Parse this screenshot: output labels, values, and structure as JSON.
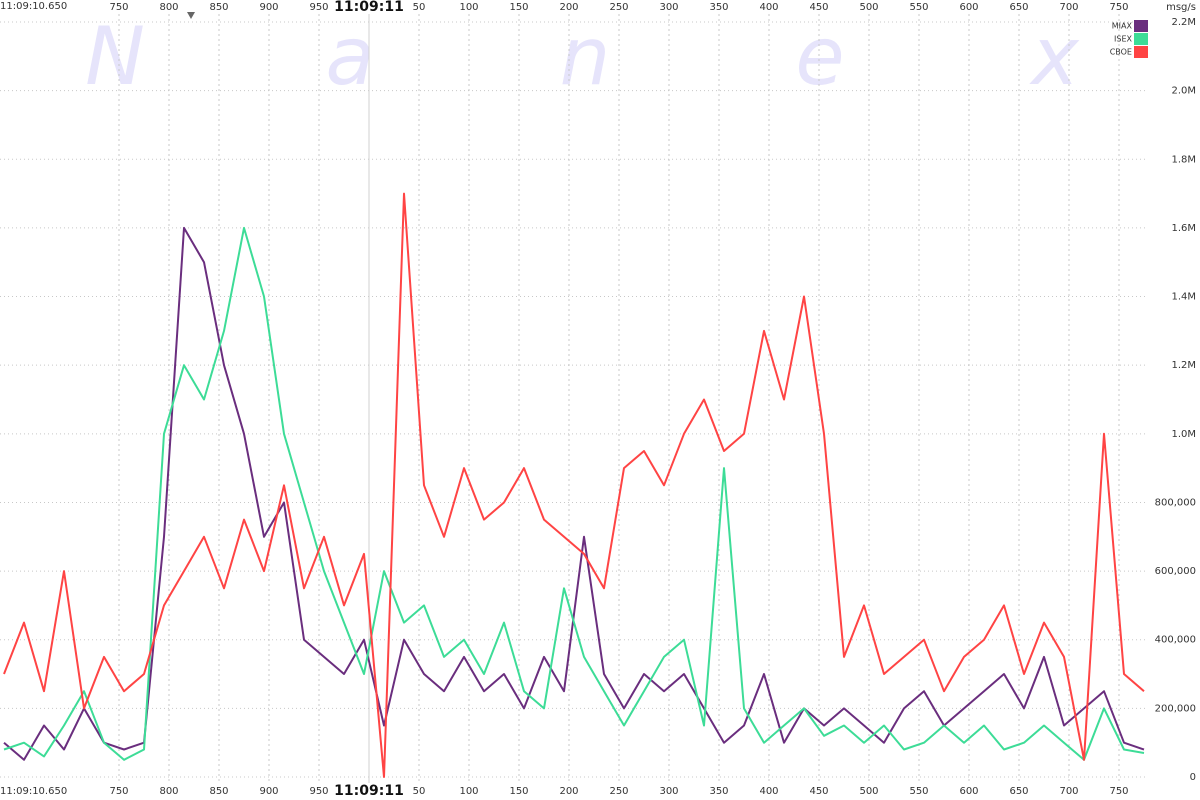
{
  "chart_data": {
    "type": "line",
    "watermark": [
      "N",
      "a",
      "n",
      "e",
      "x"
    ],
    "start_time_label": "11:09:10.650",
    "y_axis_label": "msg/s",
    "x": [
      635,
      655,
      675,
      695,
      715,
      735,
      755,
      775,
      795,
      815,
      835,
      855,
      875,
      895,
      915,
      935,
      955,
      975,
      995,
      1015,
      1035,
      1055,
      1075,
      1095,
      1115,
      1135,
      1155,
      1175,
      1195,
      1215,
      1235,
      1255,
      1275,
      1295,
      1315,
      1335,
      1355,
      1375,
      1395,
      1415,
      1435,
      1455,
      1475,
      1495,
      1515,
      1535,
      1555,
      1575,
      1595,
      1615,
      1635,
      1655,
      1675,
      1695,
      1715,
      1735,
      1755,
      1775
    ],
    "series": [
      {
        "name": "MIAX",
        "color": "#6a2e7e",
        "values": [
          100000,
          50000,
          150000,
          80000,
          200000,
          100000,
          80000,
          100000,
          700000,
          1600000,
          1500000,
          1200000,
          1000000,
          700000,
          800000,
          400000,
          350000,
          300000,
          400000,
          150000,
          400000,
          300000,
          250000,
          350000,
          250000,
          300000,
          200000,
          350000,
          250000,
          700000,
          300000,
          200000,
          300000,
          250000,
          300000,
          200000,
          100000,
          150000,
          300000,
          100000,
          200000,
          150000,
          200000,
          150000,
          100000,
          200000,
          250000,
          150000,
          200000,
          250000,
          300000,
          200000,
          350000,
          150000,
          200000,
          250000,
          100000,
          80000
        ]
      },
      {
        "name": "ISEX",
        "color": "#3ddc97",
        "values": [
          80000,
          100000,
          60000,
          150000,
          250000,
          100000,
          50000,
          80000,
          1000000,
          1200000,
          1100000,
          1300000,
          1600000,
          1400000,
          1000000,
          800000,
          600000,
          450000,
          300000,
          600000,
          450000,
          500000,
          350000,
          400000,
          300000,
          450000,
          250000,
          200000,
          550000,
          350000,
          250000,
          150000,
          250000,
          350000,
          400000,
          150000,
          900000,
          200000,
          100000,
          150000,
          200000,
          120000,
          150000,
          100000,
          150000,
          80000,
          100000,
          150000,
          100000,
          150000,
          80000,
          100000,
          150000,
          100000,
          50000,
          200000,
          80000,
          70000
        ]
      },
      {
        "name": "CBOE",
        "color": "#ff4444",
        "values": [
          300000,
          450000,
          250000,
          600000,
          200000,
          350000,
          250000,
          300000,
          500000,
          600000,
          700000,
          550000,
          750000,
          600000,
          850000,
          550000,
          700000,
          500000,
          650000,
          0,
          1700000,
          850000,
          700000,
          900000,
          750000,
          800000,
          900000,
          750000,
          700000,
          650000,
          550000,
          900000,
          950000,
          850000,
          1000000,
          1100000,
          950000,
          1000000,
          1300000,
          1100000,
          1400000,
          1000000,
          350000,
          500000,
          300000,
          350000,
          400000,
          250000,
          350000,
          400000,
          500000,
          300000,
          450000,
          350000,
          50000,
          1000000,
          300000,
          250000
        ]
      }
    ],
    "xlim": [
      631,
      1779
    ],
    "xticks": [
      750,
      800,
      850,
      900,
      950,
      {
        "value": 1000,
        "label": "11:09:11"
      },
      {
        "value": 1050,
        "label": "50"
      },
      {
        "value": 1100,
        "label": "100"
      },
      {
        "value": 1150,
        "label": "150"
      },
      {
        "value": 1200,
        "label": "200"
      },
      {
        "value": 1250,
        "label": "250"
      },
      {
        "value": 1300,
        "label": "300"
      },
      {
        "value": 1350,
        "label": "350"
      },
      {
        "value": 1400,
        "label": "400"
      },
      {
        "value": 1450,
        "label": "450"
      },
      {
        "value": 1500,
        "label": "500"
      },
      {
        "value": 1550,
        "label": "550"
      },
      {
        "value": 1600,
        "label": "600"
      },
      {
        "value": 1650,
        "label": "650"
      },
      {
        "value": 1700,
        "label": "700"
      },
      {
        "value": 1750,
        "label": "750"
      }
    ],
    "ylim": [
      0,
      2200000
    ],
    "yticks": [
      0,
      {
        "value": 200000,
        "label": "200,000"
      },
      {
        "value": 400000,
        "label": "400,000"
      },
      {
        "value": 600000,
        "label": "600,000"
      },
      {
        "value": 800000,
        "label": "800,000"
      },
      {
        "value": 1000000,
        "label": "1.0M"
      },
      {
        "value": 1200000,
        "label": "1.2M"
      },
      {
        "value": 1400000,
        "label": "1.4M"
      },
      {
        "value": 1600000,
        "label": "1.6M"
      },
      {
        "value": 1800000,
        "label": "1.8M"
      },
      {
        "value": 2000000,
        "label": "2.0M"
      },
      {
        "value": 2200000,
        "label": "2.2M"
      }
    ],
    "grid": true,
    "legend": "top-right"
  }
}
